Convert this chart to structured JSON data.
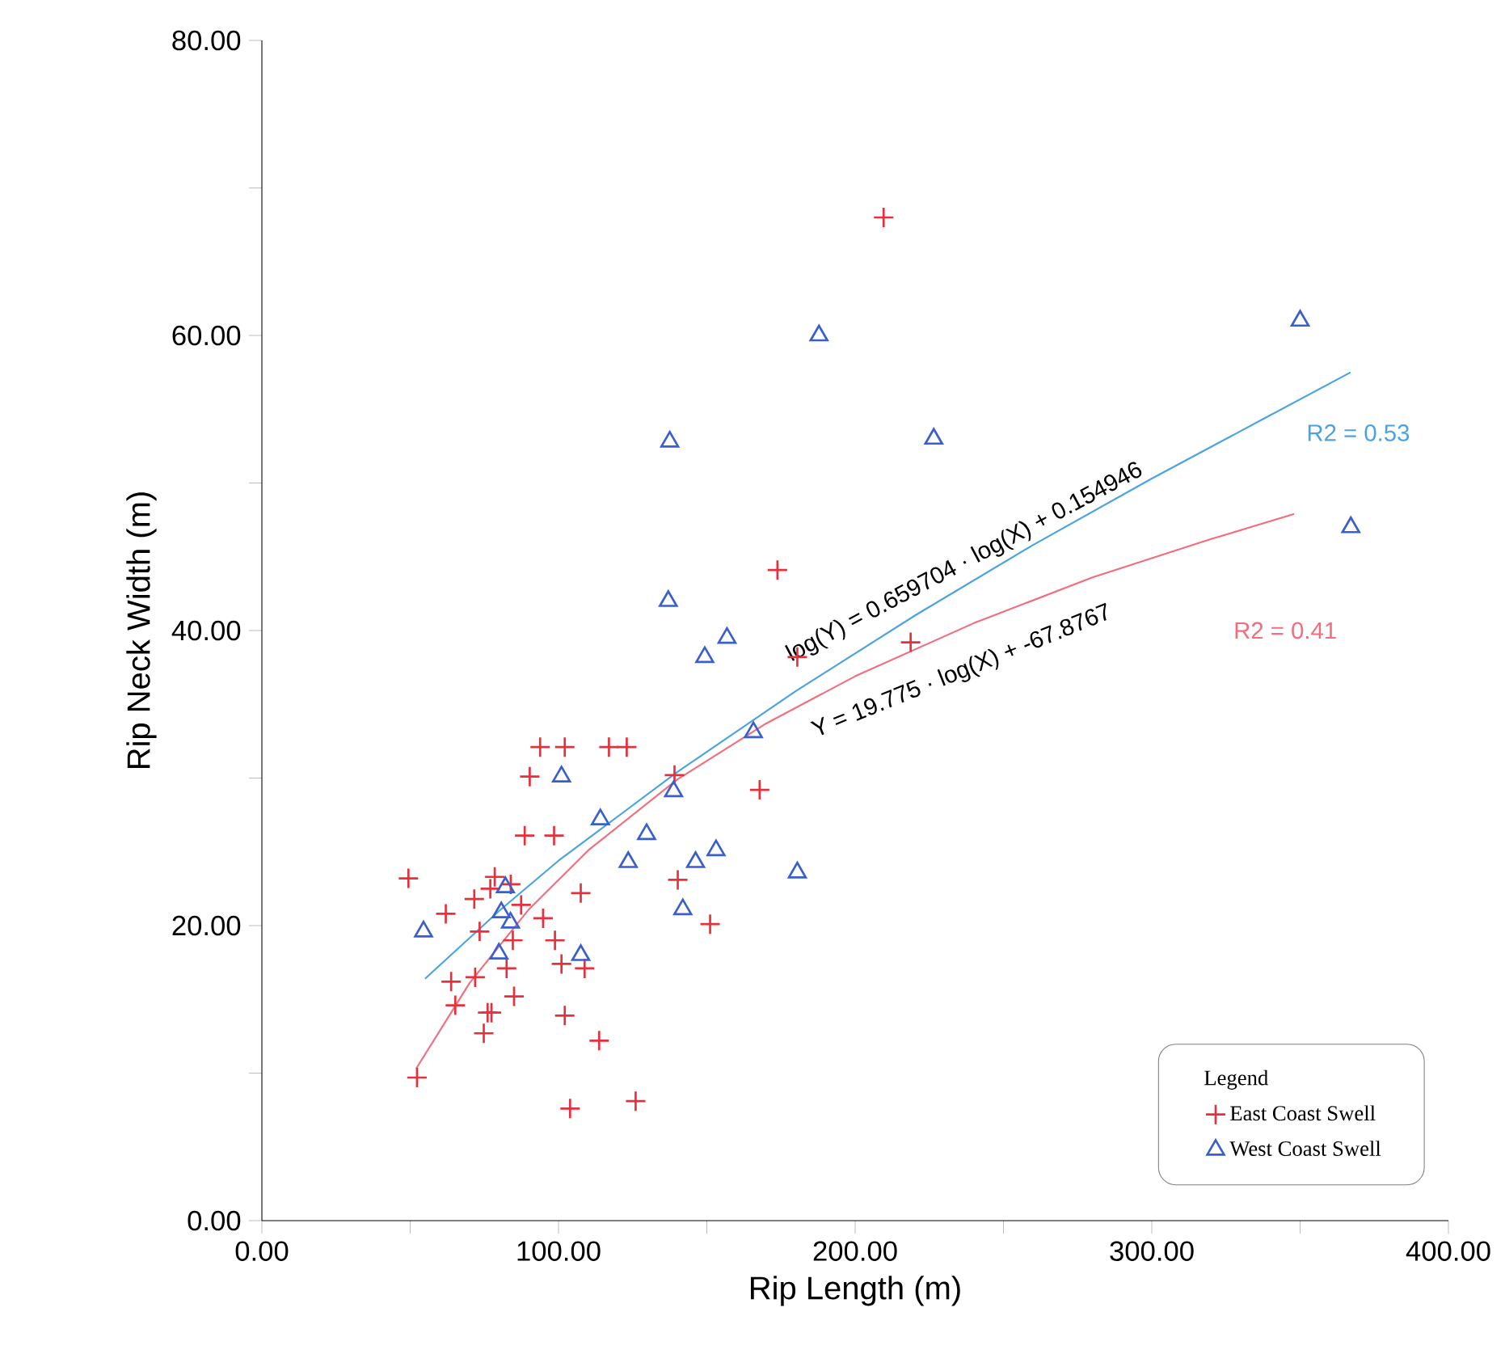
{
  "chart_data": {
    "type": "scatter",
    "xlabel": "Rip Length (m)",
    "ylabel": "Rip Neck Width (m)",
    "legend_title": "Legend",
    "legend": "bottom right",
    "xlim": [
      0,
      400
    ],
    "ylim": [
      0,
      80
    ],
    "xticks": [
      {
        "value": 0,
        "label": "0.00"
      },
      {
        "value": 100,
        "label": "100.00"
      },
      {
        "value": 200,
        "label": "200.00"
      },
      {
        "value": 300,
        "label": "300.00"
      },
      {
        "value": 400,
        "label": "400.00"
      }
    ],
    "yticks": [
      {
        "value": 0,
        "label": "0.00"
      },
      {
        "value": 20,
        "label": "20.00"
      },
      {
        "value": 40,
        "label": "40.00"
      },
      {
        "value": 60,
        "label": "60.00"
      },
      {
        "value": 80,
        "label": "80.00"
      }
    ],
    "series": [
      {
        "name": "East Coast Swell",
        "marker": "cross",
        "color": "#e8303c",
        "x": [
          93.8,
          102.1,
          117,
          123,
          90.3,
          139.1,
          167.8,
          88.6,
          98.5,
          49.4,
          78.5,
          77,
          83.9,
          71.6,
          107.5,
          62,
          87.4,
          94.8,
          140.2,
          151.1,
          73.4,
          84.6,
          98.8,
          101,
          108.8,
          82.5,
          63.8,
          71.9,
          65.2,
          76.1,
          77.4,
          85,
          102.1,
          74.8,
          113.7,
          52.3,
          103.9,
          126,
          209.6,
          173.8,
          180.5,
          218.7
        ],
        "values": [
          32.1,
          32.1,
          32.1,
          32.1,
          30.1,
          30.2,
          29.2,
          26.1,
          26.1,
          23.2,
          23.3,
          22.5,
          22.8,
          21.8,
          22.2,
          20.8,
          21.4,
          20.5,
          23.1,
          20.1,
          19.6,
          19.0,
          19.0,
          17.4,
          17.1,
          17.1,
          16.2,
          16.5,
          14.6,
          14.1,
          14.1,
          15.2,
          13.9,
          12.7,
          12.2,
          9.7,
          7.6,
          8.1,
          68.0,
          44.1,
          38.2,
          39.2
        ]
      },
      {
        "name": "West Coast Swell",
        "marker": "triangle",
        "color": "#3a5fcd",
        "x": [
          187.8,
          137.5,
          226.5,
          137,
          156.8,
          149.3,
          350,
          367.1,
          165.7,
          101,
          138.8,
          114.1,
          129.7,
          123.5,
          146.2,
          153.1,
          180.5,
          141.9,
          54.5,
          82.1,
          80.7,
          83.8,
          79.9,
          107.5
        ],
        "values": [
          60.0,
          52.8,
          53.0,
          42.0,
          39.5,
          38.2,
          61.0,
          47.0,
          33.1,
          30.1,
          29.1,
          27.2,
          26.2,
          24.3,
          24.3,
          25.1,
          23.6,
          21.1,
          19.6,
          22.6,
          20.9,
          20.2,
          18.1,
          18.0
        ]
      },
      {
        "type": "line",
        "line_style": "solid",
        "color": "#f26d7d",
        "x": [
          52,
          70,
          90,
          110,
          140,
          170,
          200,
          240,
          280,
          320,
          348
        ],
        "values": [
          10.3,
          16.1,
          21.1,
          25.1,
          29.9,
          33.7,
          36.9,
          40.5,
          43.6,
          46.2,
          47.9
        ]
      },
      {
        "type": "line",
        "line_style": "solid",
        "color": "#4aa3df",
        "x": [
          55,
          80,
          100,
          140,
          180,
          220,
          260,
          300,
          340,
          367
        ],
        "values": [
          16.4,
          21.0,
          24.4,
          30.4,
          35.9,
          41.0,
          45.8,
          50.3,
          54.6,
          57.5
        ]
      }
    ],
    "annotations": [
      "log(Y) = 0.659704 · log(X) + 0.154946",
      "Y = 19.775 · log(X) + -67.8767",
      "R2 = 0.53",
      "R2 = 0.41"
    ]
  }
}
